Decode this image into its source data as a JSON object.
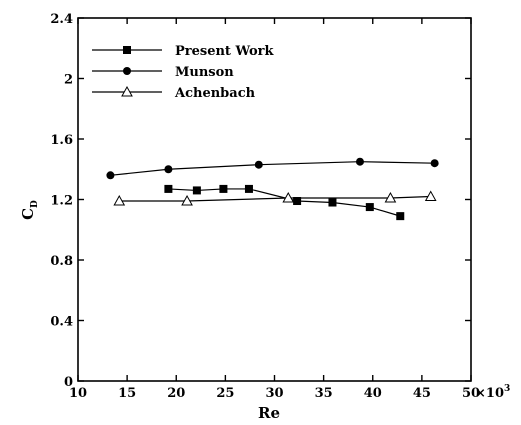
{
  "chart_data": {
    "type": "line",
    "xlabel": "Re",
    "ylabel": "C",
    "ylabel_sub": "D",
    "x_multiplier_label": "×10",
    "x_multiplier_exp": "3",
    "xlim": [
      10,
      50
    ],
    "ylim": [
      0,
      2.4
    ],
    "xticks": [
      10,
      15,
      20,
      25,
      30,
      35,
      40,
      45,
      50
    ],
    "yticks": [
      0,
      0.4,
      0.8,
      1.2,
      1.6,
      2,
      2.4
    ],
    "xtick_labels": [
      "10",
      "15",
      "20",
      "25",
      "30",
      "35",
      "40",
      "45",
      "50"
    ],
    "ytick_labels": [
      "0",
      "0.4",
      "0.8",
      "1.2",
      "1.6",
      "2",
      "2.4"
    ],
    "legend_position": "top-left",
    "grid": false,
    "series": [
      {
        "name": "Present Work",
        "marker": "square-filled",
        "x": [
          19.2,
          22.1,
          24.8,
          27.4,
          32.3,
          35.9,
          39.7,
          42.8
        ],
        "y": [
          1.27,
          1.26,
          1.27,
          1.27,
          1.19,
          1.18,
          1.15,
          1.09
        ]
      },
      {
        "name": "Munson",
        "marker": "circle-filled",
        "x": [
          13.3,
          19.2,
          28.4,
          38.7,
          46.3
        ],
        "y": [
          1.36,
          1.4,
          1.43,
          1.45,
          1.44
        ]
      },
      {
        "name": "Achenbach",
        "marker": "triangle-open",
        "x": [
          14.2,
          21.1,
          31.4,
          41.8,
          45.9
        ],
        "y": [
          1.19,
          1.19,
          1.21,
          1.21,
          1.22
        ]
      }
    ]
  }
}
